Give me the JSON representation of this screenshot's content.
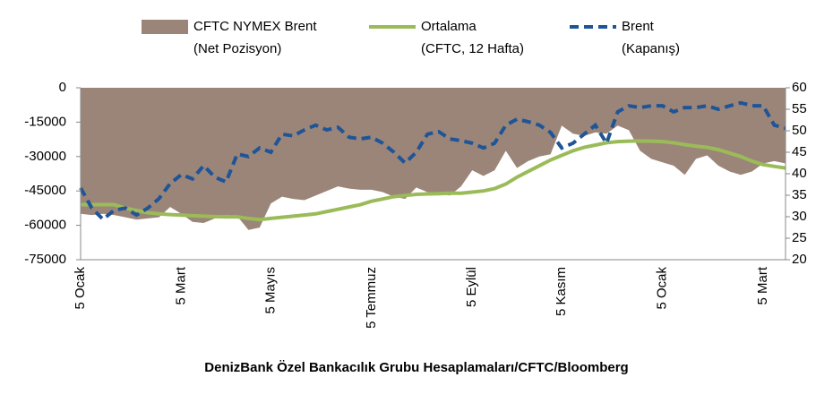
{
  "chart_data": {
    "type": "combo",
    "source": "DenizBank Özel Bankacılık Grubu Hesaplamaları/CFTC/Bloomberg",
    "categories": [
      "5 Ocak",
      null,
      null,
      null,
      null,
      null,
      null,
      null,
      null,
      "5 Mart",
      null,
      null,
      null,
      null,
      null,
      null,
      null,
      "5 Mayıs",
      null,
      null,
      null,
      null,
      null,
      null,
      null,
      null,
      "5 Temmuz",
      null,
      null,
      null,
      null,
      null,
      null,
      null,
      null,
      "5 Eylül",
      null,
      null,
      null,
      null,
      null,
      null,
      null,
      "5 Kasım",
      null,
      null,
      null,
      null,
      null,
      null,
      null,
      null,
      "5 Ocak",
      null,
      null,
      null,
      null,
      null,
      null,
      null,
      null,
      "5 Mart",
      null,
      null
    ],
    "series": [
      {
        "name": "CFTC NYMEX Brent\n(Net Pozisyon)",
        "kind": "area",
        "color": "#9b8579",
        "values": [
          -55000,
          -55500,
          -55000,
          -55500,
          -56500,
          -57500,
          -57000,
          -56500,
          -52000,
          -55000,
          -58500,
          -59000,
          -57000,
          -55500,
          -56000,
          -62000,
          -61000,
          -50500,
          -47500,
          -48500,
          -49000,
          -47000,
          -45000,
          -43000,
          -44000,
          -44500,
          -44500,
          -45500,
          -47500,
          -48500,
          -43500,
          -45500,
          -46000,
          -47000,
          -43000,
          -36000,
          -38500,
          -36000,
          -27500,
          -35000,
          -32000,
          -30000,
          -29000,
          -16500,
          -20000,
          -21000,
          -19500,
          -20000,
          -16500,
          -18500,
          -27500,
          -31000,
          -32500,
          -34000,
          -38000,
          -31000,
          -29500,
          -34000,
          -36500,
          -38000,
          -36500,
          -33000,
          -32000,
          -33000
        ]
      },
      {
        "name": "Ortalama\n(CFTC, 12 Hafta)",
        "kind": "line",
        "color": "#9bbb59",
        "values": [
          -51000,
          -51000,
          -51000,
          -51000,
          -52500,
          -53500,
          -54500,
          -55000,
          -55300,
          -55500,
          -55800,
          -56000,
          -56200,
          -56300,
          -56300,
          -57000,
          -57500,
          -57000,
          -56500,
          -56000,
          -55500,
          -55000,
          -54000,
          -53000,
          -52000,
          -51000,
          -49500,
          -48500,
          -47500,
          -47000,
          -46500,
          -46300,
          -46200,
          -46000,
          -46000,
          -45500,
          -45000,
          -44000,
          -42000,
          -39000,
          -36500,
          -34000,
          -31500,
          -29500,
          -27500,
          -26000,
          -25000,
          -24000,
          -23500,
          -23300,
          -23200,
          -23300,
          -23500,
          -24000,
          -24800,
          -25500,
          -26000,
          -27000,
          -28500,
          -30000,
          -32000,
          -33500,
          -34300,
          -35000
        ]
      },
      {
        "name": "Brent\n(Kapanış)",
        "kind": "dashed",
        "axis": "y2",
        "color": "#1f5597",
        "values": [
          36.7,
          32,
          29.4,
          31.5,
          32,
          30.4,
          32,
          34.2,
          37.7,
          39.8,
          38.8,
          41.9,
          39.2,
          38.1,
          44.6,
          44,
          46,
          45,
          49.2,
          48.8,
          50.2,
          51.3,
          50.2,
          50.8,
          48.5,
          48.1,
          48.5,
          47.1,
          45,
          42.5,
          45,
          49.2,
          49.8,
          48.1,
          47.7,
          47.1,
          46,
          47.1,
          51.3,
          52.7,
          52.1,
          51.3,
          49.6,
          46,
          47.1,
          49.2,
          51.3,
          47.1,
          54.4,
          55.8,
          55.4,
          55.8,
          55.8,
          54.4,
          55.4,
          55.4,
          55.8,
          55,
          55.8,
          56.5,
          55.8,
          55.8,
          51.3,
          50.6
        ]
      }
    ],
    "ylim": [
      -75000,
      0
    ],
    "yticks": [
      -75000,
      -60000,
      -45000,
      -30000,
      -15000,
      0
    ],
    "y2lim": [
      20,
      60
    ],
    "y2ticks": [
      20,
      25,
      30,
      35,
      40,
      45,
      50,
      55,
      60
    ]
  }
}
